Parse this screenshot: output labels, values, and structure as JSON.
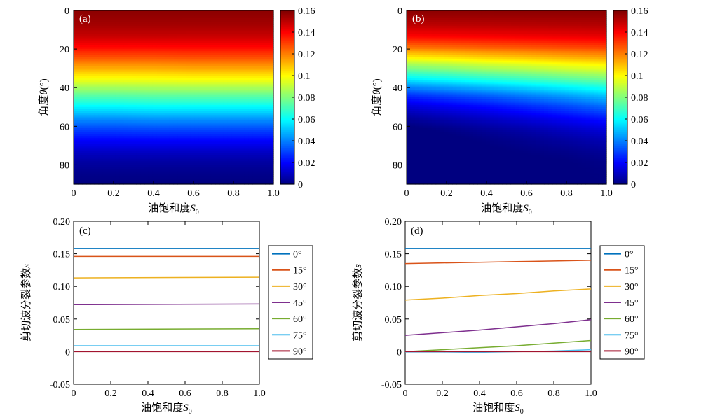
{
  "colorbar": {
    "ticks": [
      {
        "value": 0,
        "label": "0"
      },
      {
        "value": 0.02,
        "label": "0.02"
      },
      {
        "value": 0.04,
        "label": "0.04"
      },
      {
        "value": 0.06,
        "label": "0.06"
      },
      {
        "value": 0.08,
        "label": "0.08"
      },
      {
        "value": 0.1,
        "label": "0.1"
      },
      {
        "value": 0.12,
        "label": "0.12"
      },
      {
        "value": 0.14,
        "label": "0.14"
      },
      {
        "value": 0.16,
        "label": "0.16"
      }
    ],
    "range": [
      0,
      0.16
    ],
    "colormap": "jet"
  },
  "chart_data": [
    {
      "id": "a",
      "type": "heatmap",
      "panel_label": "(a)",
      "xlabel_text": "油饱和度",
      "xlabel_symbol": "S",
      "xlabel_sub": "0",
      "ylabel_text": "角度",
      "ylabel_symbol": "θ",
      "ylabel_unit": "(°)",
      "xlim": [
        0,
        1
      ],
      "ylim": [
        0,
        90
      ],
      "y_reversed": true,
      "xticks": [
        {
          "value": 0,
          "label": "0"
        },
        {
          "value": 0.2,
          "label": "0.2"
        },
        {
          "value": 0.4,
          "label": "0.4"
        },
        {
          "value": 0.6,
          "label": "0.6"
        },
        {
          "value": 0.8,
          "label": "0.8"
        },
        {
          "value": 1,
          "label": "1.0"
        }
      ],
      "yticks": [
        {
          "value": 0,
          "label": "0"
        },
        {
          "value": 20,
          "label": "20"
        },
        {
          "value": 40,
          "label": "40"
        },
        {
          "value": 60,
          "label": "60"
        },
        {
          "value": 80,
          "label": "80"
        }
      ],
      "x_samples": [
        0,
        0.2,
        0.4,
        0.6,
        0.8,
        1.0
      ],
      "angle_samples": [
        0,
        15,
        30,
        45,
        60,
        75,
        90
      ],
      "grid_values": [
        [
          0.158,
          0.158,
          0.158,
          0.158,
          0.158,
          0.158
        ],
        [
          0.146,
          0.146,
          0.146,
          0.146,
          0.146,
          0.146
        ],
        [
          0.113,
          0.113,
          0.113,
          0.114,
          0.114,
          0.114
        ],
        [
          0.072,
          0.072,
          0.073,
          0.073,
          0.073,
          0.073
        ],
        [
          0.034,
          0.034,
          0.035,
          0.035,
          0.035,
          0.035
        ],
        [
          0.009,
          0.009,
          0.009,
          0.009,
          0.009,
          0.009
        ],
        [
          0.0,
          0.0,
          0.0,
          0.0,
          0.0,
          0.0
        ]
      ]
    },
    {
      "id": "b",
      "type": "heatmap",
      "panel_label": "(b)",
      "xlabel_text": "油饱和度",
      "xlabel_symbol": "S",
      "xlabel_sub": "0",
      "ylabel_text": "角度",
      "ylabel_symbol": "θ",
      "ylabel_unit": "(°)",
      "xlim": [
        0,
        1
      ],
      "ylim": [
        0,
        90
      ],
      "y_reversed": true,
      "xticks": [
        {
          "value": 0,
          "label": "0"
        },
        {
          "value": 0.2,
          "label": "0.2"
        },
        {
          "value": 0.4,
          "label": "0.4"
        },
        {
          "value": 0.6,
          "label": "0.6"
        },
        {
          "value": 0.8,
          "label": "0.8"
        },
        {
          "value": 1,
          "label": "1.0"
        }
      ],
      "yticks": [
        {
          "value": 0,
          "label": "0"
        },
        {
          "value": 20,
          "label": "20"
        },
        {
          "value": 40,
          "label": "40"
        },
        {
          "value": 60,
          "label": "60"
        },
        {
          "value": 80,
          "label": "80"
        }
      ],
      "x_samples": [
        0,
        0.2,
        0.4,
        0.6,
        0.8,
        1.0
      ],
      "angle_samples": [
        0,
        15,
        30,
        45,
        60,
        75,
        90
      ],
      "grid_values": [
        [
          0.158,
          0.158,
          0.158,
          0.158,
          0.158,
          0.158
        ],
        [
          0.135,
          0.136,
          0.137,
          0.138,
          0.139,
          0.14
        ],
        [
          0.079,
          0.082,
          0.086,
          0.089,
          0.093,
          0.096
        ],
        [
          0.025,
          0.029,
          0.033,
          0.038,
          0.043,
          0.049
        ],
        [
          0.0,
          0.003,
          0.006,
          0.009,
          0.013,
          0.017
        ],
        [
          -0.002,
          -0.002,
          -0.001,
          0.0,
          0.001,
          0.003
        ],
        [
          0.0,
          0.0,
          0.0,
          0.0,
          0.0,
          0.0
        ]
      ]
    },
    {
      "id": "c",
      "type": "line",
      "panel_label": "(c)",
      "xlabel_text": "油饱和度",
      "xlabel_symbol": "S",
      "xlabel_sub": "0",
      "ylabel_text": "剪切波分裂参数",
      "ylabel_symbol": "s",
      "xlim": [
        0,
        1
      ],
      "ylim": [
        -0.05,
        0.2
      ],
      "xticks": [
        {
          "value": 0,
          "label": "0"
        },
        {
          "value": 0.2,
          "label": "0.2"
        },
        {
          "value": 0.4,
          "label": "0.4"
        },
        {
          "value": 0.6,
          "label": "0.6"
        },
        {
          "value": 0.8,
          "label": "0.8"
        },
        {
          "value": 1,
          "label": "1.0"
        }
      ],
      "yticks": [
        {
          "value": -0.05,
          "label": "-0.05"
        },
        {
          "value": 0,
          "label": "0"
        },
        {
          "value": 0.05,
          "label": "0.05"
        },
        {
          "value": 0.1,
          "label": "0.10"
        },
        {
          "value": 0.15,
          "label": "0.15"
        },
        {
          "value": 0.2,
          "label": "0.20"
        }
      ],
      "x": [
        0,
        1
      ],
      "series": [
        {
          "name": "0°",
          "color": "#0072BD",
          "values": [
            0.158,
            0.158
          ]
        },
        {
          "name": "15°",
          "color": "#D95319",
          "values": [
            0.146,
            0.146
          ]
        },
        {
          "name": "30°",
          "color": "#EDB120",
          "values": [
            0.113,
            0.114
          ]
        },
        {
          "name": "45°",
          "color": "#7E2F8E",
          "values": [
            0.072,
            0.073
          ]
        },
        {
          "name": "60°",
          "color": "#77AC30",
          "values": [
            0.034,
            0.035
          ]
        },
        {
          "name": "75°",
          "color": "#4DBEEE",
          "values": [
            0.009,
            0.009
          ]
        },
        {
          "name": "90°",
          "color": "#A2142F",
          "values": [
            0.0,
            0.0
          ]
        }
      ],
      "legend_position": "right"
    },
    {
      "id": "d",
      "type": "line",
      "panel_label": "(d)",
      "xlabel_text": "油饱和度",
      "xlabel_symbol": "S",
      "xlabel_sub": "0",
      "ylabel_text": "剪切波分裂参数",
      "ylabel_symbol": "s",
      "xlim": [
        0,
        1
      ],
      "ylim": [
        -0.05,
        0.2
      ],
      "xticks": [
        {
          "value": 0,
          "label": "0"
        },
        {
          "value": 0.2,
          "label": "0.2"
        },
        {
          "value": 0.4,
          "label": "0.4"
        },
        {
          "value": 0.6,
          "label": "0.6"
        },
        {
          "value": 0.8,
          "label": "0.8"
        },
        {
          "value": 1,
          "label": "1.0"
        }
      ],
      "yticks": [
        {
          "value": -0.05,
          "label": "-0.05"
        },
        {
          "value": 0,
          "label": "0"
        },
        {
          "value": 0.05,
          "label": "0.05"
        },
        {
          "value": 0.1,
          "label": "0.10"
        },
        {
          "value": 0.15,
          "label": "0.15"
        },
        {
          "value": 0.2,
          "label": "0.20"
        }
      ],
      "x": [
        0,
        0.2,
        0.4,
        0.6,
        0.8,
        1.0
      ],
      "series": [
        {
          "name": "0°",
          "color": "#0072BD",
          "values": [
            0.158,
            0.158,
            0.158,
            0.158,
            0.158,
            0.158
          ]
        },
        {
          "name": "15°",
          "color": "#D95319",
          "values": [
            0.135,
            0.136,
            0.137,
            0.138,
            0.139,
            0.14
          ]
        },
        {
          "name": "30°",
          "color": "#EDB120",
          "values": [
            0.079,
            0.082,
            0.086,
            0.089,
            0.093,
            0.096
          ]
        },
        {
          "name": "45°",
          "color": "#7E2F8E",
          "values": [
            0.025,
            0.029,
            0.033,
            0.038,
            0.043,
            0.049
          ]
        },
        {
          "name": "60°",
          "color": "#77AC30",
          "values": [
            0.0,
            0.003,
            0.006,
            0.009,
            0.013,
            0.017
          ]
        },
        {
          "name": "75°",
          "color": "#4DBEEE",
          "values": [
            -0.002,
            -0.002,
            -0.001,
            0.0,
            0.001,
            0.003
          ]
        },
        {
          "name": "90°",
          "color": "#A2142F",
          "values": [
            0.0,
            0.0,
            0.0,
            0.0,
            0.0,
            0.0
          ]
        }
      ],
      "legend_position": "right"
    }
  ]
}
